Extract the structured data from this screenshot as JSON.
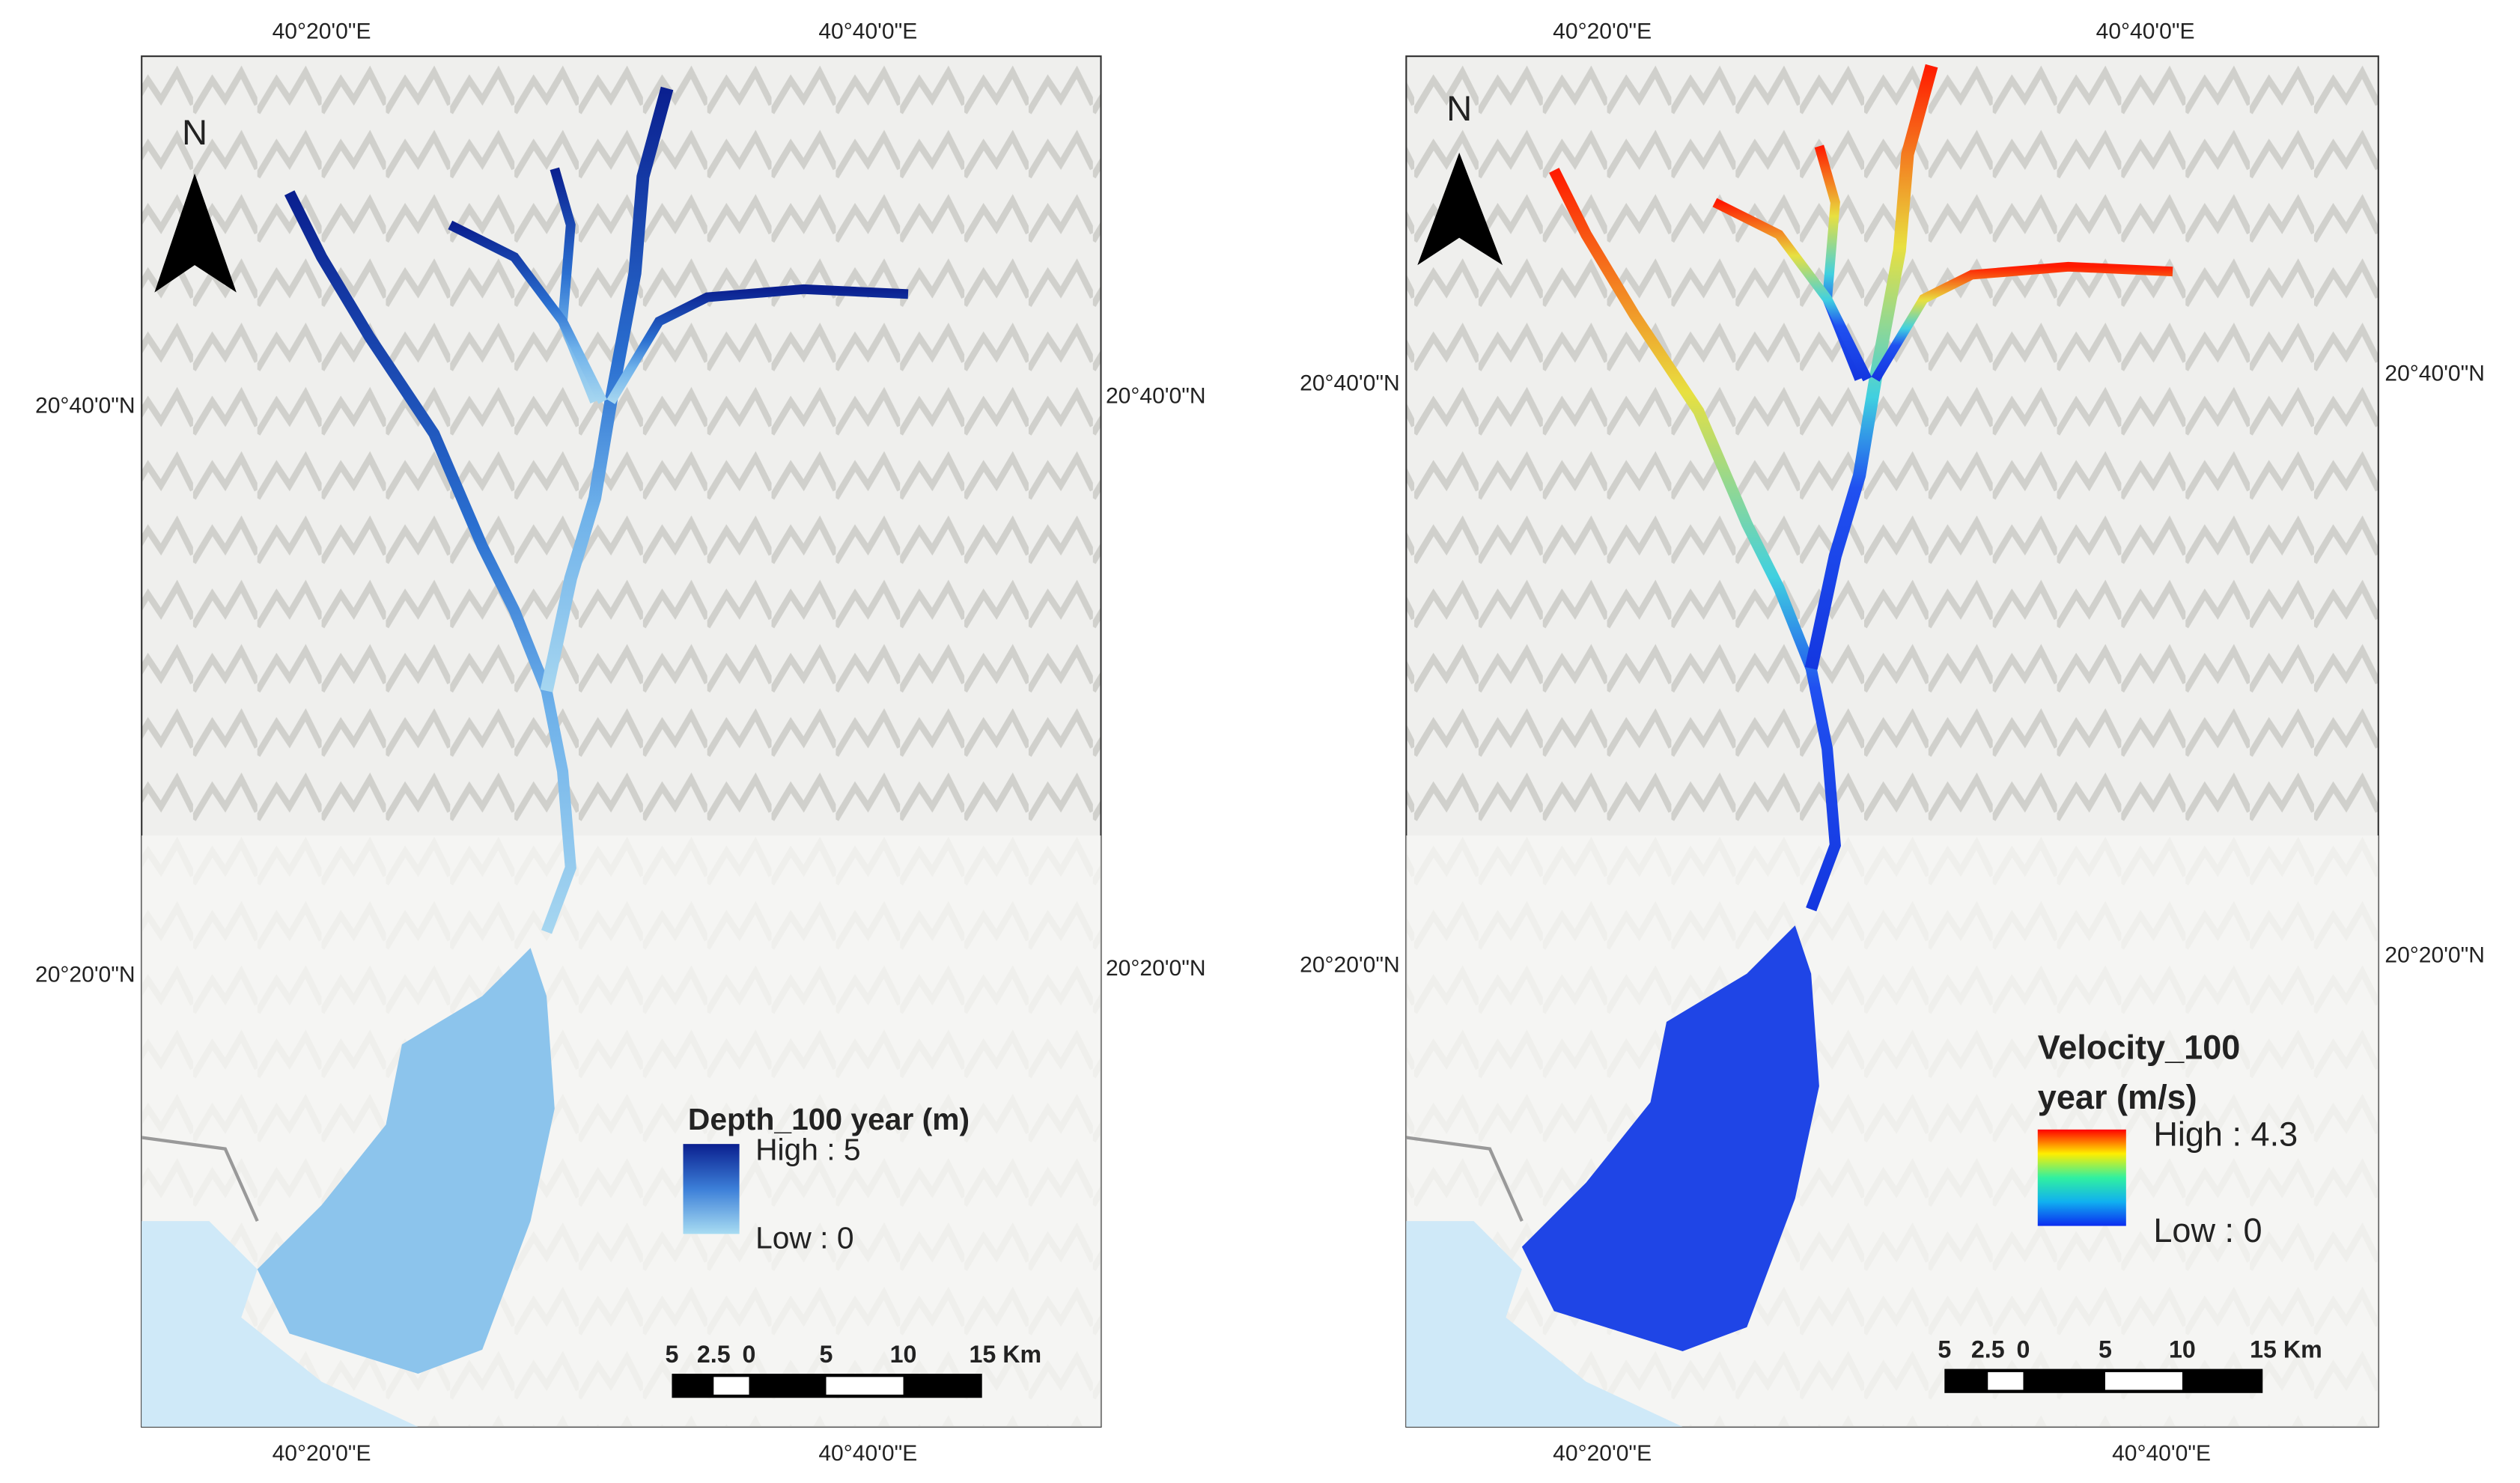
{
  "maps": [
    {
      "top_labels": [
        "40°20'0\"E",
        "40°40'0\"E"
      ],
      "bottom_labels": [
        "40°20'0\"E",
        "40°40'0\"E"
      ],
      "left_labels": [
        "20°40'0\"N",
        "20°20'0\"N"
      ],
      "right_labels": [
        "20°40'0\"N",
        "20°20'0\"N"
      ],
      "north": "N",
      "legend": {
        "title_lines": [
          "Depth_100 year (m)"
        ],
        "high": "High : 5",
        "low": "Low : 0"
      },
      "scale_labels": [
        "5",
        "2.5",
        "0",
        "5",
        "10",
        "15 Km"
      ]
    },
    {
      "top_labels": [
        "40°20'0\"E",
        "40°40'0\"E"
      ],
      "bottom_labels": [
        "40°20'0\"E",
        "40°40'0\"E"
      ],
      "left_labels": [
        "20°40'0\"N",
        "20°20'0\"N"
      ],
      "right_labels": [
        "20°40'0\"N",
        "20°20'0\"N"
      ],
      "north": "N",
      "legend": {
        "title_lines": [
          "Velocity_100",
          "year (m/s)"
        ],
        "high": "High : 4.3",
        "low": "Low : 0"
      },
      "scale_labels": [
        "5",
        "2.5",
        "0",
        "5",
        "10",
        "15 Km"
      ]
    }
  ]
}
